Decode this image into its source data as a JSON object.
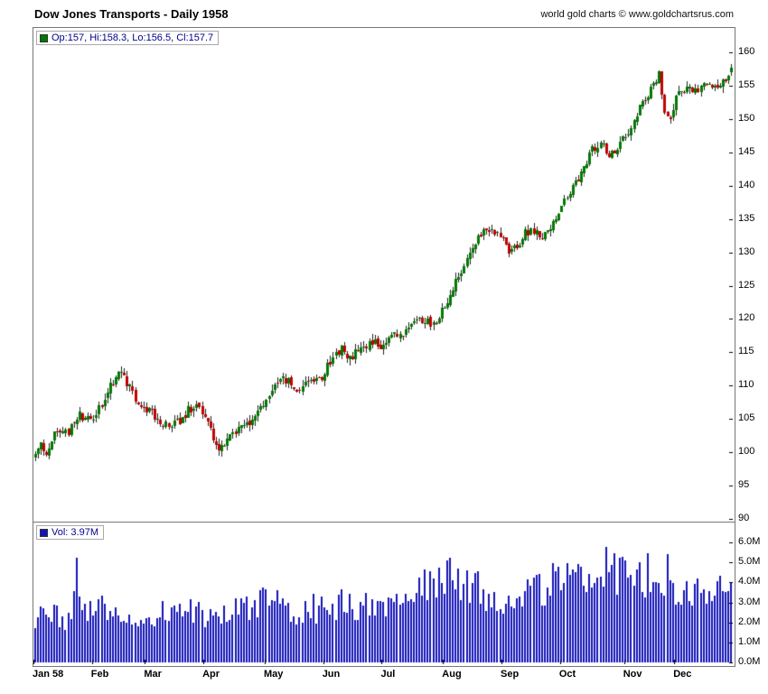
{
  "header": {
    "title": "Dow Jones Transports - Daily 1958",
    "copyright": "world gold charts © www.goldchartsrus.com"
  },
  "price_pane": {
    "legend": "Op:157, Hi:158.3, Lo:156.5, Cl:157.7"
  },
  "volume_pane": {
    "legend": "Vol: 3.97M"
  },
  "chart_data": {
    "type": "candlestick",
    "title": "Dow Jones Transports - Daily 1958",
    "x_months": [
      "Jan 58",
      "Feb",
      "Mar",
      "Apr",
      "May",
      "Jun",
      "Jul",
      "Aug",
      "Sep",
      "Oct",
      "Nov",
      "Dec"
    ],
    "month_start_days": [
      0,
      21,
      40,
      61,
      83,
      104,
      125,
      147,
      168,
      189,
      212,
      230
    ],
    "n_days": 251,
    "seed": 19580101,
    "price_axis": {
      "ticks": [
        160,
        155,
        150,
        145,
        140,
        135,
        130,
        125,
        120,
        115,
        110,
        105,
        100,
        95,
        90
      ],
      "ylim": [
        90,
        160
      ]
    },
    "volume_axis": {
      "ticks": [
        {
          "label": "6.0M",
          "value": 6
        },
        {
          "label": "5.0M",
          "value": 5
        },
        {
          "label": "4.0M",
          "value": 4
        },
        {
          "label": "3.0M",
          "value": 3
        },
        {
          "label": "2.0M",
          "value": 2
        },
        {
          "label": "1.0M",
          "value": 1
        },
        {
          "label": "0.0M",
          "value": 0
        }
      ],
      "ylim": [
        0,
        6.5
      ]
    },
    "last_candle": {
      "open": 157,
      "high": 158.3,
      "low": 156.5,
      "close": 157.7
    },
    "last_volume": 3.97,
    "close_waypoints": [
      [
        0,
        99.2
      ],
      [
        2,
        101.5
      ],
      [
        4,
        100.0
      ],
      [
        8,
        103.5
      ],
      [
        12,
        103.0
      ],
      [
        16,
        105.5
      ],
      [
        20,
        105.0
      ],
      [
        24,
        107.5
      ],
      [
        28,
        110.5
      ],
      [
        31,
        111.8
      ],
      [
        34,
        109.5
      ],
      [
        37,
        107.0
      ],
      [
        40,
        106.5
      ],
      [
        44,
        105.0
      ],
      [
        48,
        104.0
      ],
      [
        52,
        104.5
      ],
      [
        55,
        106.5
      ],
      [
        58,
        107.0
      ],
      [
        61,
        106.0
      ],
      [
        64,
        101.5
      ],
      [
        66,
        100.5
      ],
      [
        70,
        102.5
      ],
      [
        74,
        103.5
      ],
      [
        78,
        105.0
      ],
      [
        82,
        107.0
      ],
      [
        86,
        110.0
      ],
      [
        89,
        111.5
      ],
      [
        92,
        110.0
      ],
      [
        95,
        108.5
      ],
      [
        98,
        111.0
      ],
      [
        101,
        110.5
      ],
      [
        104,
        112.0
      ],
      [
        107,
        114.5
      ],
      [
        110,
        115.5
      ],
      [
        113,
        114.0
      ],
      [
        116,
        115.5
      ],
      [
        120,
        116.5
      ],
      [
        124,
        116.0
      ],
      [
        128,
        117.5
      ],
      [
        132,
        118.0
      ],
      [
        136,
        119.5
      ],
      [
        140,
        120.0
      ],
      [
        143,
        119.0
      ],
      [
        146,
        121.0
      ],
      [
        149,
        123.5
      ],
      [
        152,
        126.5
      ],
      [
        155,
        129.5
      ],
      [
        158,
        131.5
      ],
      [
        161,
        133.0
      ],
      [
        164,
        133.5
      ],
      [
        167,
        132.5
      ],
      [
        170,
        129.5
      ],
      [
        173,
        131.0
      ],
      [
        176,
        133.0
      ],
      [
        179,
        133.5
      ],
      [
        182,
        132.0
      ],
      [
        185,
        134.0
      ],
      [
        188,
        135.5
      ],
      [
        191,
        138.5
      ],
      [
        194,
        140.5
      ],
      [
        197,
        143.0
      ],
      [
        200,
        145.5
      ],
      [
        203,
        146.5
      ],
      [
        206,
        144.5
      ],
      [
        209,
        146.0
      ],
      [
        212,
        147.5
      ],
      [
        215,
        150.0
      ],
      [
        218,
        152.5
      ],
      [
        221,
        154.5
      ],
      [
        224,
        156.5
      ],
      [
        226,
        151.5
      ],
      [
        228,
        150.5
      ],
      [
        231,
        154.0
      ],
      [
        234,
        155.0
      ],
      [
        237,
        154.5
      ],
      [
        240,
        155.0
      ],
      [
        243,
        154.5
      ],
      [
        246,
        155.5
      ],
      [
        249,
        156.5
      ],
      [
        250,
        157.7
      ]
    ],
    "volume_waypoints": [
      [
        0,
        2.2
      ],
      [
        4,
        2.6
      ],
      [
        8,
        2.3
      ],
      [
        12,
        2.1
      ],
      [
        15,
        4.3
      ],
      [
        18,
        2.4
      ],
      [
        22,
        2.9
      ],
      [
        26,
        2.4
      ],
      [
        30,
        2.6
      ],
      [
        34,
        2.2
      ],
      [
        38,
        2.0
      ],
      [
        42,
        2.2
      ],
      [
        46,
        2.4
      ],
      [
        50,
        2.3
      ],
      [
        54,
        2.6
      ],
      [
        58,
        2.5
      ],
      [
        62,
        2.4
      ],
      [
        66,
        2.6
      ],
      [
        70,
        2.5
      ],
      [
        74,
        2.8
      ],
      [
        78,
        2.7
      ],
      [
        82,
        3.0
      ],
      [
        86,
        2.9
      ],
      [
        90,
        2.8
      ],
      [
        94,
        2.6
      ],
      [
        98,
        2.9
      ],
      [
        102,
        2.5
      ],
      [
        106,
        2.8
      ],
      [
        110,
        3.0
      ],
      [
        114,
        2.7
      ],
      [
        118,
        2.9
      ],
      [
        122,
        2.6
      ],
      [
        126,
        2.8
      ],
      [
        130,
        3.0
      ],
      [
        134,
        3.3
      ],
      [
        138,
        3.6
      ],
      [
        142,
        3.9
      ],
      [
        146,
        4.2
      ],
      [
        150,
        4.4
      ],
      [
        154,
        3.8
      ],
      [
        158,
        4.1
      ],
      [
        162,
        3.5
      ],
      [
        166,
        3.2
      ],
      [
        170,
        3.0
      ],
      [
        174,
        3.5
      ],
      [
        178,
        3.8
      ],
      [
        182,
        3.4
      ],
      [
        186,
        4.0
      ],
      [
        190,
        4.3
      ],
      [
        194,
        3.8
      ],
      [
        198,
        4.4
      ],
      [
        202,
        4.0
      ],
      [
        205,
        5.5
      ],
      [
        208,
        4.6
      ],
      [
        211,
        4.2
      ],
      [
        214,
        4.5
      ],
      [
        217,
        4.0
      ],
      [
        220,
        4.4
      ],
      [
        223,
        4.2
      ],
      [
        226,
        4.5
      ],
      [
        229,
        3.9
      ],
      [
        232,
        3.6
      ],
      [
        235,
        3.3
      ],
      [
        238,
        3.8
      ],
      [
        241,
        3.5
      ],
      [
        244,
        3.0
      ],
      [
        247,
        3.6
      ],
      [
        250,
        3.97
      ]
    ],
    "colors": {
      "up": "#007a00",
      "down": "#c40000",
      "wick": "#222222",
      "volume": "#1414b8",
      "axis": "#000000"
    }
  }
}
